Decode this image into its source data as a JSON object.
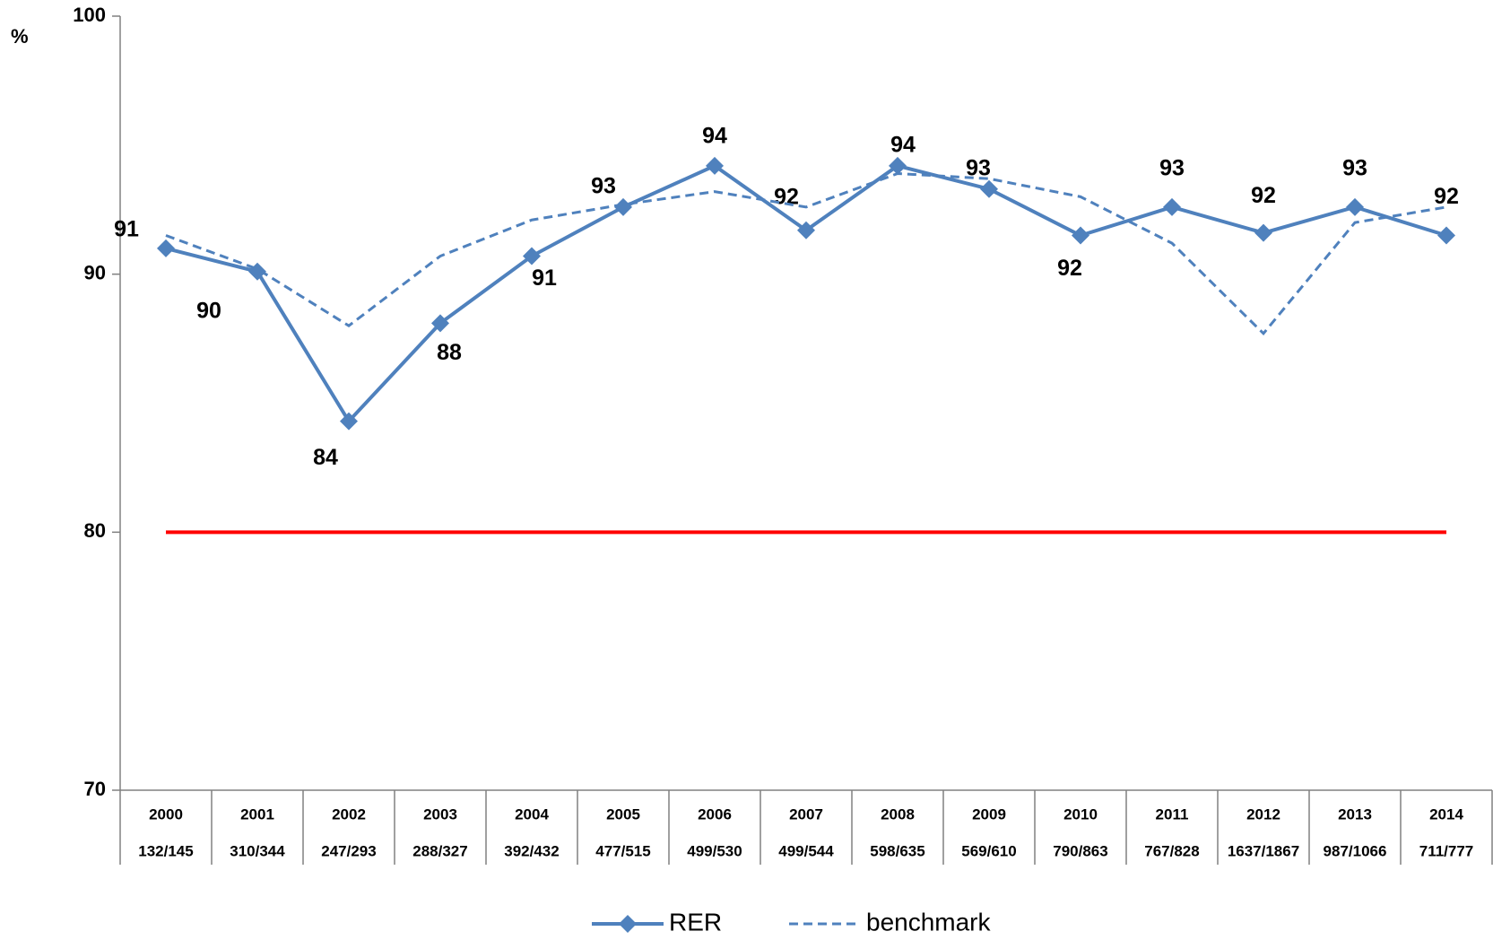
{
  "chart_data": {
    "type": "line",
    "y_label": "%",
    "categories": [
      "2000",
      "2001",
      "2002",
      "2003",
      "2004",
      "2005",
      "2006",
      "2007",
      "2008",
      "2009",
      "2010",
      "2011",
      "2012",
      "2013",
      "2014"
    ],
    "sample_sizes": [
      "132/145",
      "310/344",
      "247/293",
      "288/327",
      "392/432",
      "477/515",
      "499/530",
      "499/544",
      "598/635",
      "569/610",
      "790/863",
      "767/828",
      "1637/1867",
      "987/1066",
      "711/777"
    ],
    "series": [
      {
        "name": "RER",
        "color": "#4f81bd",
        "dash": false,
        "marker": "diamond",
        "values": [
          91.0,
          90.1,
          84.3,
          88.1,
          90.7,
          92.6,
          94.2,
          91.7,
          94.2,
          93.3,
          91.5,
          92.6,
          91.6,
          92.6,
          91.5
        ],
        "value_labels": [
          "91",
          "90",
          "84",
          "88",
          "91",
          "93",
          "94",
          "92",
          "94",
          "93",
          "92",
          "93",
          "92",
          "93",
          "92"
        ]
      },
      {
        "name": "benchmark",
        "color": "#4f81bd",
        "dash": true,
        "marker": "none",
        "values": [
          91.5,
          90.2,
          88.0,
          90.7,
          92.1,
          92.7,
          93.2,
          92.6,
          93.9,
          93.7,
          93.0,
          91.2,
          87.7,
          92.0,
          92.6
        ]
      }
    ],
    "reference_line": {
      "value": 80,
      "color": "#ff0000"
    },
    "ylim": [
      70,
      100
    ],
    "yticks": [
      70,
      80,
      90,
      100
    ],
    "grid": false
  }
}
